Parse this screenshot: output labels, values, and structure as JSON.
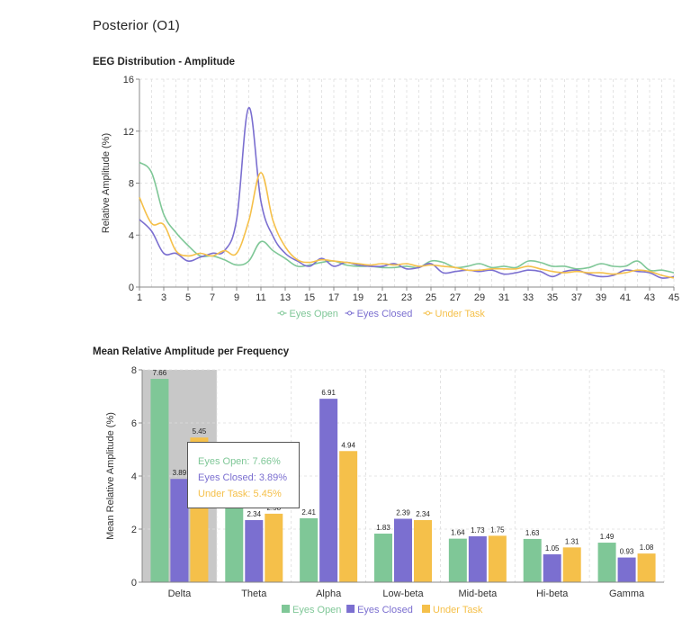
{
  "page_title": "Posterior (O1)",
  "colors": {
    "eyes_open": "#7fc797",
    "eyes_closed": "#7b6fd0",
    "under_task": "#f5c04a",
    "highlight": "#c8c8c8"
  },
  "tooltip": {
    "eyes_open": "Eyes Open: 7.66%",
    "eyes_closed": "Eyes Closed: 3.89%",
    "under_task": "Under Task: 5.45%"
  },
  "chart_data": [
    {
      "type": "line",
      "title": "EEG Distribution - Amplitude",
      "xlabel": "",
      "ylabel": "Relative Amplitude (%)",
      "x": [
        1,
        2,
        3,
        4,
        5,
        6,
        7,
        8,
        9,
        10,
        11,
        12,
        13,
        14,
        15,
        16,
        17,
        18,
        19,
        20,
        21,
        22,
        23,
        24,
        25,
        26,
        27,
        28,
        29,
        30,
        31,
        32,
        33,
        34,
        35,
        36,
        37,
        38,
        39,
        40,
        41,
        42,
        43,
        44,
        45
      ],
      "xticks": [
        "1",
        "3",
        "5",
        "7",
        "9",
        "11",
        "13",
        "15",
        "17",
        "19",
        "21",
        "23",
        "25",
        "27",
        "29",
        "31",
        "33",
        "35",
        "37",
        "39",
        "41",
        "43",
        "45"
      ],
      "yticks": [
        "0",
        "4",
        "8",
        "12",
        "16"
      ],
      "xlim": [
        1,
        45
      ],
      "ylim": [
        0,
        16
      ],
      "grid": true,
      "legend": "bottom",
      "series": [
        {
          "name": "Eyes Open",
          "values": [
            9.6,
            8.8,
            5.6,
            4.2,
            3.2,
            2.4,
            2.4,
            2.1,
            1.7,
            2.0,
            3.5,
            2.8,
            2.2,
            1.6,
            1.7,
            1.9,
            2.0,
            1.7,
            1.6,
            1.6,
            1.5,
            1.5,
            1.6,
            1.5,
            2.0,
            1.9,
            1.5,
            1.6,
            1.8,
            1.5,
            1.6,
            1.5,
            2.0,
            1.9,
            1.6,
            1.6,
            1.4,
            1.5,
            1.8,
            1.6,
            1.6,
            2.0,
            1.3,
            1.3,
            1.1
          ]
        },
        {
          "name": "Eyes Closed",
          "values": [
            5.2,
            4.3,
            2.6,
            2.6,
            2.0,
            2.3,
            2.6,
            2.8,
            5.2,
            13.8,
            6.6,
            3.9,
            2.6,
            2.0,
            1.6,
            2.2,
            1.6,
            1.9,
            1.7,
            1.6,
            1.6,
            1.8,
            1.4,
            1.5,
            1.8,
            1.1,
            1.2,
            1.3,
            1.2,
            1.3,
            1.0,
            1.1,
            1.3,
            1.2,
            0.8,
            1.2,
            1.3,
            1.0,
            0.8,
            0.9,
            1.3,
            1.2,
            1.1,
            0.7,
            0.8
          ]
        },
        {
          "name": "Under Task",
          "values": [
            6.9,
            4.9,
            4.8,
            2.8,
            2.4,
            2.6,
            2.4,
            2.8,
            2.6,
            5.1,
            8.8,
            5.1,
            3.1,
            2.1,
            1.9,
            2.1,
            2.0,
            1.9,
            1.8,
            1.7,
            1.8,
            1.7,
            1.8,
            1.6,
            1.7,
            1.6,
            1.5,
            1.3,
            1.3,
            1.4,
            1.4,
            1.4,
            1.6,
            1.4,
            1.2,
            1.1,
            1.2,
            1.1,
            1.1,
            1.0,
            1.1,
            1.3,
            1.2,
            0.9,
            0.7
          ]
        }
      ]
    },
    {
      "type": "bar",
      "title": "Mean Relative Amplitude per Frequency",
      "xlabel": "",
      "ylabel": "Mean Relative Amplitude (%)",
      "categories": [
        "Delta",
        "Theta",
        "Alpha",
        "Low-beta",
        "Mid-beta",
        "Hi-beta",
        "Gamma"
      ],
      "yticks": [
        "0",
        "2",
        "4",
        "6",
        "8"
      ],
      "ylim": [
        0,
        8
      ],
      "grid": true,
      "legend": "bottom",
      "highlighted_category": "Delta",
      "series": [
        {
          "name": "Eyes Open",
          "values": [
            7.66,
            2.9,
            2.41,
            1.83,
            1.64,
            1.63,
            1.49
          ],
          "labels": [
            "7.66",
            "",
            "2.41",
            "1.83",
            "1.64",
            "1.63",
            "1.49"
          ]
        },
        {
          "name": "Eyes Closed",
          "values": [
            3.89,
            2.34,
            6.91,
            2.39,
            1.73,
            1.05,
            0.93
          ],
          "labels": [
            "3.89",
            "2.34",
            "6.91",
            "2.39",
            "1.73",
            "1.05",
            "0.93"
          ]
        },
        {
          "name": "Under Task",
          "values": [
            5.45,
            2.58,
            4.94,
            2.34,
            1.75,
            1.31,
            1.08
          ],
          "labels": [
            "5.45",
            "2.58",
            "4.94",
            "2.34",
            "1.75",
            "1.31",
            "1.08"
          ]
        }
      ]
    }
  ]
}
